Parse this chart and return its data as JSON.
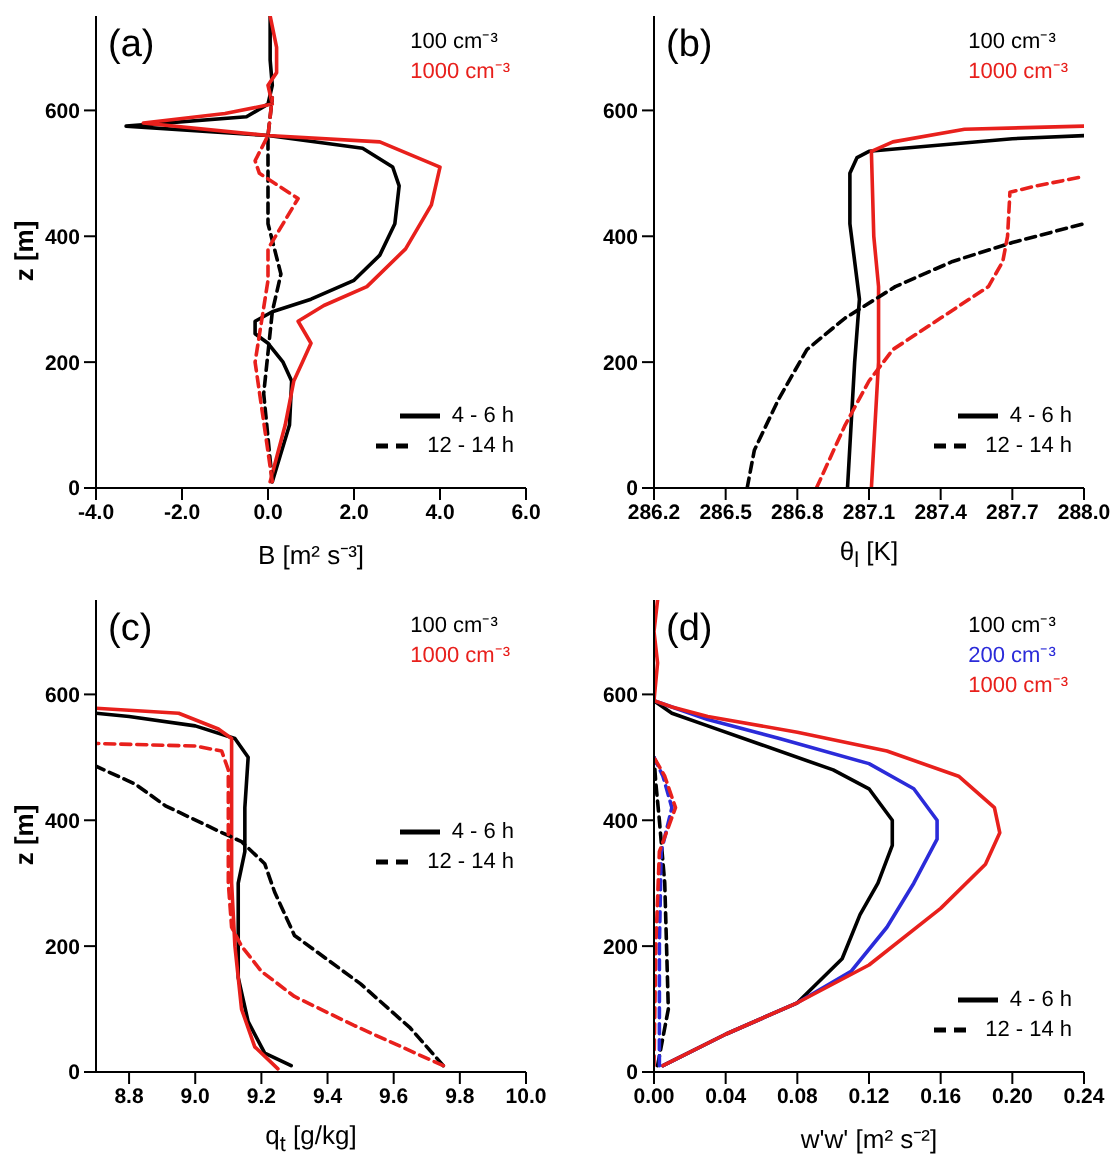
{
  "chart_data": [
    {
      "type": "line",
      "title": "(a)",
      "xlabel": "B [m² s⁻³]",
      "ylabel": "z [m]",
      "legend": "top right",
      "annotations": [
        "4 - 6 h",
        "12 - 14 h"
      ],
      "xlim": [
        -4,
        6
      ],
      "xticks": [
        {
          "value": -4,
          "label": "-4.0"
        },
        {
          "value": -2,
          "label": "-2.0"
        },
        {
          "value": 0,
          "label": "0.0"
        },
        {
          "value": 2,
          "label": "2.0"
        },
        {
          "value": 4,
          "label": "4.0"
        },
        {
          "value": 6,
          "label": "6.0"
        }
      ],
      "ylim": [
        0,
        750
      ],
      "yticks": [
        0,
        200,
        400,
        600
      ],
      "series": [
        {
          "name": "100 cm⁻³",
          "color": "#000000",
          "line_style": "solid",
          "x": [
            0.1,
            0.5,
            0.55,
            0.35,
            0.0,
            -0.3,
            -0.3,
            0.1,
            1.0,
            2.0,
            2.6,
            2.95,
            3.05,
            2.9,
            2.2,
            0.0,
            -3.3,
            -0.5,
            0.0,
            0.1,
            0.05,
            0.05
          ],
          "values": [
            10,
            100,
            170,
            200,
            230,
            245,
            265,
            280,
            300,
            330,
            370,
            420,
            480,
            510,
            540,
            560,
            575,
            590,
            610,
            640,
            680,
            750
          ]
        },
        {
          "name": "1000 cm⁻³",
          "color": "#e8201c",
          "line_style": "solid",
          "x": [
            0.05,
            0.4,
            0.6,
            0.8,
            1.0,
            0.7,
            1.3,
            2.3,
            3.2,
            3.8,
            4.0,
            2.6,
            0.0,
            -2.9,
            -1.0,
            0.1,
            0.0,
            0.2,
            0.2,
            0.05
          ],
          "values": [
            10,
            100,
            170,
            200,
            230,
            265,
            290,
            320,
            380,
            450,
            510,
            550,
            560,
            580,
            595,
            610,
            640,
            660,
            700,
            750
          ]
        },
        {
          "color": "#000000",
          "line_style": "dashed",
          "x": [
            0.1,
            -0.1,
            0.1,
            0.3,
            0.0,
            0.0,
            0.1
          ],
          "values": [
            10,
            150,
            280,
            340,
            420,
            560,
            620
          ]
        },
        {
          "color": "#e8201c",
          "line_style": "dashed",
          "x": [
            0.1,
            -0.3,
            0.0,
            0.0,
            0.7,
            -0.2,
            -0.3,
            0.0,
            0.1
          ],
          "values": [
            10,
            200,
            330,
            380,
            460,
            500,
            520,
            560,
            620
          ]
        }
      ]
    },
    {
      "type": "line",
      "title": "(b)",
      "xlabel": "θ$_{l}$ [K]",
      "legend": "top right",
      "annotations": [
        "4 - 6 h",
        "12 - 14 h"
      ],
      "xlim": [
        286.2,
        288.0
      ],
      "xticks": [
        286.2,
        286.5,
        286.8,
        287.1,
        287.4,
        287.7,
        {
          "value": 288,
          "label": "288.0"
        }
      ],
      "ylim": [
        0,
        750
      ],
      "yticks": [
        0,
        200,
        400,
        600
      ],
      "series": [
        {
          "name": "100 cm⁻³",
          "color": "#000000",
          "line_style": "solid",
          "x": [
            287.01,
            287.04,
            287.06,
            287.02,
            287.02,
            287.05,
            287.1,
            287.4,
            287.7,
            288.0
          ],
          "values": [
            0,
            200,
            300,
            420,
            500,
            525,
            535,
            545,
            555,
            560
          ]
        },
        {
          "name": "1000 cm⁻³",
          "color": "#e8201c",
          "line_style": "solid",
          "x": [
            287.11,
            287.14,
            287.14,
            287.12,
            287.11,
            287.2,
            287.5,
            288.0
          ],
          "values": [
            0,
            200,
            320,
            400,
            535,
            550,
            570,
            575
          ]
        },
        {
          "color": "#000000",
          "line_style": "dashed",
          "x": [
            286.59,
            286.62,
            286.72,
            286.84,
            287.0,
            287.21,
            287.45,
            287.7,
            288.0
          ],
          "values": [
            0,
            60,
            140,
            220,
            270,
            320,
            360,
            390,
            420
          ]
        },
        {
          "color": "#e8201c",
          "line_style": "dashed",
          "x": [
            286.88,
            287.0,
            287.1,
            287.2,
            287.4,
            287.6,
            287.66,
            287.68,
            287.69,
            287.8,
            288.0
          ],
          "values": [
            0,
            100,
            170,
            220,
            270,
            320,
            360,
            400,
            470,
            480,
            495
          ]
        }
      ]
    },
    {
      "type": "line",
      "title": "(c)",
      "xlabel": "q$_{t}$ [g/kg]",
      "ylabel": "z [m]",
      "legend": "top right",
      "annotations": [
        "4 - 6 h",
        "12 - 14 h"
      ],
      "xlim": [
        8.7,
        10.0
      ],
      "xticks": [
        8.8,
        {
          "value": 9,
          "label": "9.0"
        },
        9.2,
        9.4,
        9.6,
        9.8,
        {
          "value": 10,
          "label": "10.0"
        }
      ],
      "ylim": [
        0,
        750
      ],
      "yticks": [
        0,
        200,
        400,
        600
      ],
      "series": [
        {
          "name": "100 cm⁻³",
          "color": "#000000",
          "line_style": "solid",
          "x": [
            9.29,
            9.21,
            9.16,
            9.13,
            9.13,
            9.15,
            9.15,
            9.16,
            9.12,
            9.0,
            8.8,
            8.7
          ],
          "values": [
            10,
            30,
            80,
            150,
            300,
            350,
            420,
            500,
            530,
            550,
            565,
            570
          ]
        },
        {
          "name": "1000 cm⁻³",
          "color": "#e8201c",
          "line_style": "solid",
          "x": [
            9.25,
            9.18,
            9.14,
            9.12,
            9.11,
            9.11,
            9.11,
            9.07,
            8.95,
            8.7
          ],
          "values": [
            5,
            40,
            100,
            200,
            300,
            400,
            530,
            545,
            570,
            578
          ]
        },
        {
          "color": "#000000",
          "line_style": "dashed",
          "x": [
            9.75,
            9.65,
            9.5,
            9.3,
            9.24,
            9.21,
            9.14,
            9.07,
            8.91,
            8.82,
            8.7
          ],
          "values": [
            10,
            70,
            140,
            217,
            286,
            331,
            366,
            383,
            423,
            457,
            486
          ]
        },
        {
          "color": "#e8201c",
          "line_style": "dashed",
          "x": [
            9.75,
            9.48,
            9.3,
            9.2,
            9.14,
            9.11,
            9.1,
            9.1,
            9.1,
            9.08,
            9.0,
            8.7
          ],
          "values": [
            10,
            74,
            120,
            160,
            200,
            230,
            300,
            400,
            480,
            510,
            518,
            522
          ]
        }
      ]
    },
    {
      "type": "line",
      "title": "(d)",
      "xlabel": "w'w' [m² s⁻²]",
      "legend": "top right",
      "annotations": [
        "4 - 6 h",
        "12 - 14 h"
      ],
      "xlim": [
        0,
        0.24
      ],
      "xticks": [
        {
          "value": 0,
          "label": "0.00"
        },
        0.04,
        0.08,
        0.12,
        0.16,
        {
          "value": 0.2,
          "label": "0.20"
        },
        0.24
      ],
      "ylim": [
        0,
        750
      ],
      "yticks": [
        0,
        200,
        400,
        600
      ],
      "series": [
        {
          "name": "100 cm⁻³",
          "color": "#000000",
          "line_style": "solid",
          "x": [
            0.005,
            0.04,
            0.08,
            0.105,
            0.115,
            0.125,
            0.133,
            0.133,
            0.12,
            0.1,
            0.06,
            0.03,
            0.01,
            0.0
          ],
          "values": [
            10,
            60,
            110,
            180,
            250,
            300,
            360,
            400,
            450,
            480,
            520,
            550,
            570,
            590
          ]
        },
        {
          "name": "200 cm⁻³",
          "color": "#2b2bd9",
          "line_style": "solid",
          "x": [
            0.005,
            0.04,
            0.08,
            0.11,
            0.13,
            0.145,
            0.158,
            0.158,
            0.145,
            0.12,
            0.07,
            0.03,
            0.01,
            0.0
          ],
          "values": [
            10,
            60,
            110,
            160,
            230,
            300,
            370,
            400,
            450,
            490,
            530,
            560,
            580,
            590
          ]
        },
        {
          "name": "1000 cm⁻³",
          "color": "#e8201c",
          "line_style": "solid",
          "x": [
            0.005,
            0.04,
            0.08,
            0.12,
            0.16,
            0.185,
            0.193,
            0.19,
            0.17,
            0.13,
            0.08,
            0.03,
            0.01,
            0.0,
            0.002,
            0.0,
            0.002
          ],
          "values": [
            10,
            60,
            110,
            170,
            260,
            330,
            380,
            420,
            470,
            510,
            540,
            565,
            580,
            590,
            650,
            700,
            750
          ]
        },
        {
          "color": "#000000",
          "line_style": "dashed",
          "x": [
            0.002,
            0.008,
            0.006,
            0.003,
            0.001,
            0.0
          ],
          "values": [
            10,
            100,
            300,
            400,
            460,
            500
          ]
        },
        {
          "color": "#2b2bd9",
          "line_style": "dashed",
          "x": [
            0.003,
            0.003,
            0.004,
            0.01,
            0.005,
            0.0
          ],
          "values": [
            10,
            200,
            350,
            420,
            470,
            500
          ]
        },
        {
          "color": "#e8201c",
          "line_style": "dashed",
          "x": [
            0.0,
            0.001,
            0.003,
            0.012,
            0.006,
            0.0
          ],
          "values": [
            10,
            200,
            350,
            420,
            470,
            500
          ]
        }
      ]
    }
  ]
}
